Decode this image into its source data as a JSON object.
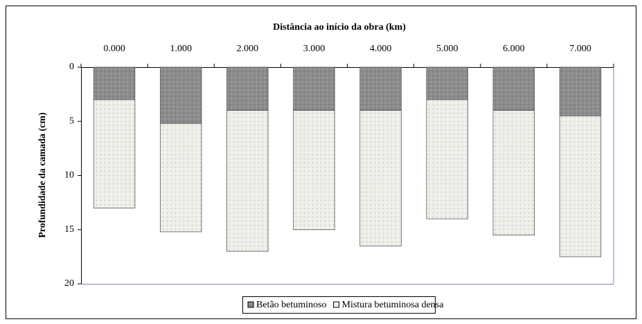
{
  "chart_data": {
    "type": "stacked_bar",
    "title": "Distância ao início da obra (km)",
    "y_label": "Profundidade da camada (cm)",
    "categories": [
      "0.000",
      "1.000",
      "2.000",
      "3.000",
      "4.000",
      "5.000",
      "6.000",
      "7.000"
    ],
    "series": [
      {
        "name": "Betão betuminoso",
        "color": "#8c8c8c",
        "values": [
          3,
          5.2,
          4,
          4,
          4,
          3,
          4,
          4.5
        ]
      },
      {
        "name": "Mistura betuminosa densa",
        "color": "#efefea",
        "values": [
          10,
          10,
          13,
          11,
          12.5,
          11,
          11.5,
          13
        ]
      }
    ],
    "ylim": [
      0,
      20
    ],
    "yticks": [
      0,
      5,
      10,
      15,
      20
    ],
    "y_inverted": true,
    "x_axis_position": "top",
    "legend": "bottom",
    "grid": false
  }
}
